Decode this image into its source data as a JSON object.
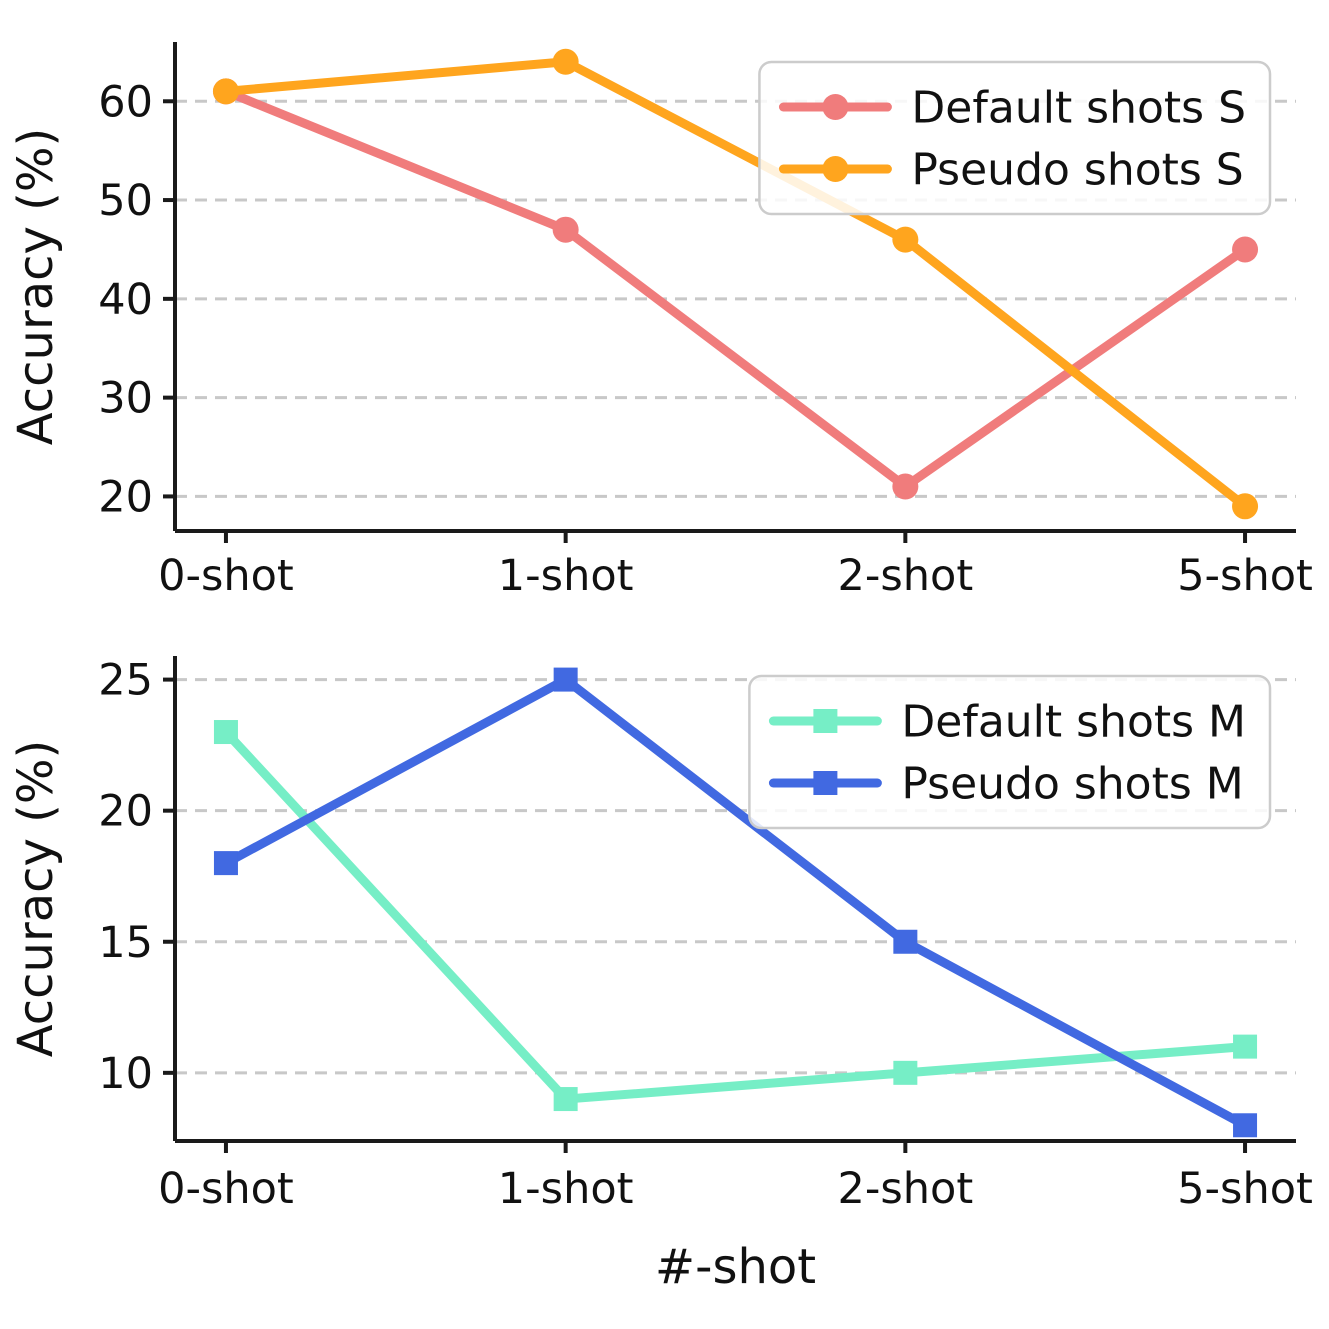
{
  "figure": {
    "background": "#ffffff",
    "grid_color": "#c8c8c8",
    "spine_color": "#1a1a1a",
    "text_color": "#111111"
  },
  "chart_data": [
    {
      "type": "line",
      "title": "",
      "xlabel": "",
      "ylabel": "Accuracy (%)",
      "categories": [
        "0-shot",
        "1-shot",
        "2-shot",
        "5-shot"
      ],
      "yticks": [
        20,
        30,
        40,
        50,
        60
      ],
      "ylim": [
        16.5,
        66
      ],
      "grid": true,
      "legend_position": "upper right",
      "series": [
        {
          "name": "Default shots S",
          "color": "#F07C7C",
          "marker": "circle",
          "values": [
            61,
            47,
            21,
            45
          ]
        },
        {
          "name": "Pseudo shots S",
          "color": "#FFA51E",
          "marker": "circle",
          "values": [
            61,
            64,
            46,
            19
          ]
        }
      ]
    },
    {
      "type": "line",
      "title": "",
      "xlabel": "#-shot",
      "ylabel": "Accuracy (%)",
      "categories": [
        "0-shot",
        "1-shot",
        "2-shot",
        "5-shot"
      ],
      "yticks": [
        10,
        15,
        20,
        25
      ],
      "ylim": [
        7.4,
        25.9
      ],
      "grid": true,
      "legend_position": "upper right",
      "series": [
        {
          "name": "Default shots M",
          "color": "#76EEC6",
          "marker": "square",
          "values": [
            23,
            9,
            10,
            11
          ]
        },
        {
          "name": "Pseudo shots M",
          "color": "#4169E1",
          "marker": "square",
          "values": [
            18,
            25,
            15,
            8
          ]
        }
      ]
    }
  ]
}
